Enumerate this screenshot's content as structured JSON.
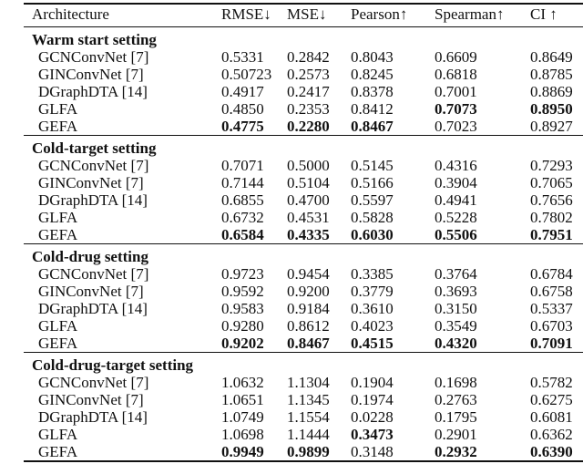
{
  "paper_table": {
    "header": {
      "architecture": "Architecture",
      "metrics": [
        "RMSE↓",
        "MSE↓",
        "Pearson↑",
        "Spearman↑",
        "CI ↑"
      ]
    },
    "sections": [
      {
        "title": "Warm start setting",
        "rows": [
          {
            "name": "GCNConvNet [7]",
            "values": [
              "0.5331",
              "0.2842",
              "0.8043",
              "0.6609",
              "0.8649"
            ],
            "bold": [
              false,
              false,
              false,
              false,
              false
            ]
          },
          {
            "name": "GINConvNet [7]",
            "values": [
              "0.50723",
              "0.2573",
              "0.8245",
              "0.6818",
              "0.8785"
            ],
            "bold": [
              false,
              false,
              false,
              false,
              false
            ]
          },
          {
            "name": "DGraphDTA [14]",
            "values": [
              "0.4917",
              "0.2417",
              "0.8378",
              "0.7001",
              "0.8869"
            ],
            "bold": [
              false,
              false,
              false,
              false,
              false
            ]
          },
          {
            "name": "GLFA",
            "values": [
              "0.4850",
              "0.2353",
              "0.8412",
              "0.7073",
              "0.8950"
            ],
            "bold": [
              false,
              false,
              false,
              true,
              true
            ]
          },
          {
            "name": "GEFA",
            "values": [
              "0.4775",
              "0.2280",
              "0.8467",
              "0.7023",
              "0.8927"
            ],
            "bold": [
              true,
              true,
              true,
              false,
              false
            ]
          }
        ]
      },
      {
        "title": "Cold-target setting",
        "rows": [
          {
            "name": "GCNConvNet [7]",
            "values": [
              "0.7071",
              "0.5000",
              "0.5145",
              "0.4316",
              "0.7293"
            ],
            "bold": [
              false,
              false,
              false,
              false,
              false
            ]
          },
          {
            "name": "GINConvNet [7]",
            "values": [
              "0.7144",
              "0.5104",
              "0.5166",
              "0.3904",
              "0.7065"
            ],
            "bold": [
              false,
              false,
              false,
              false,
              false
            ]
          },
          {
            "name": "DGraphDTA [14]",
            "values": [
              "0.6855",
              "0.4700",
              "0.5597",
              "0.4941",
              "0.7656"
            ],
            "bold": [
              false,
              false,
              false,
              false,
              false
            ]
          },
          {
            "name": "GLFA",
            "values": [
              "0.6732",
              "0.4531",
              "0.5828",
              "0.5228",
              "0.7802"
            ],
            "bold": [
              false,
              false,
              false,
              false,
              false
            ]
          },
          {
            "name": "GEFA",
            "values": [
              "0.6584",
              "0.4335",
              "0.6030",
              "0.5506",
              "0.7951"
            ],
            "bold": [
              true,
              true,
              true,
              true,
              true
            ]
          }
        ]
      },
      {
        "title": "Cold-drug setting",
        "rows": [
          {
            "name": "GCNConvNet [7]",
            "values": [
              "0.9723",
              "0.9454",
              "0.3385",
              "0.3764",
              "0.6784"
            ],
            "bold": [
              false,
              false,
              false,
              false,
              false
            ]
          },
          {
            "name": "GINConvNet [7]",
            "values": [
              "0.9592",
              "0.9200",
              "0.3779",
              "0.3693",
              "0.6758"
            ],
            "bold": [
              false,
              false,
              false,
              false,
              false
            ]
          },
          {
            "name": "DGraphDTA [14]",
            "values": [
              "0.9583",
              "0.9184",
              "0.3610",
              "0.3150",
              "0.5337"
            ],
            "bold": [
              false,
              false,
              false,
              false,
              false
            ]
          },
          {
            "name": "GLFA",
            "values": [
              "0.9280",
              "0.8612",
              "0.4023",
              "0.3549",
              "0.6703"
            ],
            "bold": [
              false,
              false,
              false,
              false,
              false
            ]
          },
          {
            "name": "GEFA",
            "values": [
              "0.9202",
              "0.8467",
              "0.4515",
              "0.4320",
              "0.7091"
            ],
            "bold": [
              true,
              true,
              true,
              true,
              true
            ]
          }
        ]
      },
      {
        "title": "Cold-drug-target setting",
        "rows": [
          {
            "name": "GCNConvNet [7]",
            "values": [
              "1.0632",
              "1.1304",
              "0.1904",
              "0.1698",
              "0.5782"
            ],
            "bold": [
              false,
              false,
              false,
              false,
              false
            ]
          },
          {
            "name": "GINConvNet [7]",
            "values": [
              "1.0651",
              "1.1345",
              "0.1974",
              "0.2763",
              "0.6275"
            ],
            "bold": [
              false,
              false,
              false,
              false,
              false
            ]
          },
          {
            "name": "DGraphDTA [14]",
            "values": [
              "1.0749",
              "1.1554",
              "0.0228",
              "0.1795",
              "0.6081"
            ],
            "bold": [
              false,
              false,
              false,
              false,
              false
            ]
          },
          {
            "name": "GLFA",
            "values": [
              "1.0698",
              "1.1444",
              "0.3473",
              "0.2901",
              "0.6362"
            ],
            "bold": [
              false,
              false,
              true,
              false,
              false
            ]
          },
          {
            "name": "GEFA",
            "values": [
              "0.9949",
              "0.9899",
              "0.3148",
              "0.2932",
              "0.6390"
            ],
            "bold": [
              true,
              true,
              false,
              true,
              true
            ]
          }
        ]
      }
    ]
  }
}
